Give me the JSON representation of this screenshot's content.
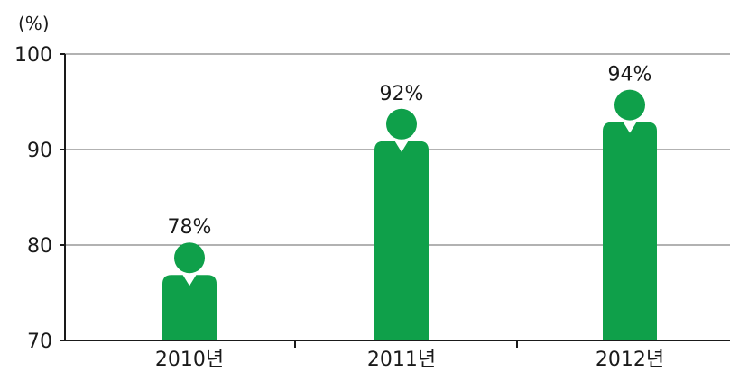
{
  "chart_data": {
    "type": "bar",
    "title": "",
    "xlabel": "",
    "ylabel": "(%)",
    "categories": [
      "2010년",
      "2011년",
      "2012년"
    ],
    "values": [
      78,
      92,
      94
    ],
    "value_labels": [
      "78%",
      "92%",
      "94%"
    ],
    "ylim": [
      70,
      100
    ],
    "yticks": [
      "70",
      "80",
      "90",
      "100"
    ],
    "grid": true,
    "legend": "none",
    "bar_style": "person-icon"
  },
  "colors": {
    "bar": "#0fa04a",
    "axis": "#1a1a1a",
    "grid": "#666666",
    "notch": "#ffffff"
  }
}
